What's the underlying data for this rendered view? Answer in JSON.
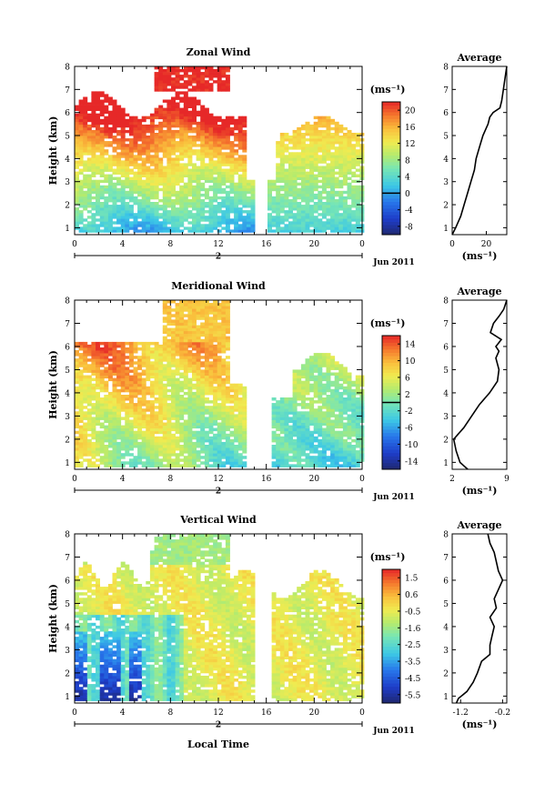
{
  "chart_data": [
    {
      "type": "heatmap",
      "title": "Zonal Wind",
      "ylabel": "Height (km)",
      "xlabel": "",
      "date_label": "Jun 2011",
      "day_label": "2",
      "xlim": [
        0,
        24
      ],
      "ylim": [
        0.7,
        8
      ],
      "xticks": [
        "0",
        "4",
        "8",
        "12",
        "16",
        "20",
        "0"
      ],
      "yticks": [
        "1",
        "2",
        "3",
        "4",
        "5",
        "6",
        "7",
        "8"
      ],
      "colorbar": {
        "unit": "(ms⁻¹)",
        "range": [
          -10,
          22
        ],
        "zero_line": 0,
        "ticks": [
          "20",
          "16",
          "12",
          "8",
          "4",
          "0",
          "-4",
          "-8"
        ]
      },
      "average_profile": {
        "title": "Average",
        "xlabel": "(ms⁻¹)",
        "xlim": [
          0,
          32
        ],
        "xticks": [
          "0",
          "20"
        ],
        "heights": [
          0.7,
          1,
          1.5,
          2,
          2.5,
          3,
          3.5,
          4,
          4.5,
          5,
          5.5,
          5.8,
          6,
          6.2,
          6.5,
          7,
          7.5,
          8
        ],
        "values": [
          0,
          2,
          5,
          7,
          9,
          11,
          13,
          14,
          16,
          18,
          21,
          22,
          24,
          28,
          29,
          30,
          31,
          32
        ]
      }
    },
    {
      "type": "heatmap",
      "title": "Meridional Wind",
      "ylabel": "Height (km)",
      "xlabel": "",
      "date_label": "Jun 2011",
      "day_label": "2",
      "xlim": [
        0,
        24
      ],
      "ylim": [
        0.7,
        8
      ],
      "xticks": [
        "0",
        "4",
        "8",
        "12",
        "16",
        "20",
        "0"
      ],
      "yticks": [
        "1",
        "2",
        "3",
        "4",
        "5",
        "6",
        "7",
        "8"
      ],
      "colorbar": {
        "unit": "(ms⁻¹)",
        "range": [
          -16,
          16
        ],
        "zero_line": 0,
        "ticks": [
          "14",
          "10",
          "6",
          "2",
          "-2",
          "-6",
          "-10",
          "-14"
        ]
      },
      "average_profile": {
        "title": "Average",
        "xlabel": "(ms⁻¹)",
        "xlim": [
          2,
          9
        ],
        "xticks": [
          "2",
          "9"
        ],
        "heights": [
          0.7,
          1,
          1.5,
          2,
          2.5,
          3,
          3.5,
          4,
          4.5,
          5,
          5.5,
          5.8,
          6,
          6.3,
          6.6,
          7,
          7.3,
          7.6,
          8
        ],
        "values": [
          4,
          3,
          2.5,
          2.2,
          3.5,
          4.5,
          5.5,
          6.8,
          7.8,
          8,
          7.6,
          8,
          7.6,
          8.3,
          6.9,
          7.3,
          8,
          8.6,
          9
        ]
      }
    },
    {
      "type": "heatmap",
      "title": "Vertical Wind",
      "ylabel": "Height (km)",
      "xlabel": "Local Time",
      "date_label": "Jun 2011",
      "day_label": "2",
      "xlim": [
        0,
        24
      ],
      "ylim": [
        0.7,
        8
      ],
      "xticks": [
        "0",
        "4",
        "8",
        "12",
        "16",
        "20",
        "0"
      ],
      "yticks": [
        "1",
        "2",
        "3",
        "4",
        "5",
        "6",
        "7",
        "8"
      ],
      "colorbar": {
        "unit": "(ms⁻¹)",
        "range": [
          -6.2,
          2.2
        ],
        "zero_line": null,
        "ticks": [
          "1.5",
          "0.6",
          "-0.5",
          "-1.6",
          "-2.5",
          "-3.5",
          "-4.5",
          "-5.5"
        ]
      },
      "average_profile": {
        "title": "Average",
        "xlabel": "(ms⁻¹)",
        "xlim": [
          -1.4,
          -0.1
        ],
        "xticks": [
          "-1.2",
          "-0.2"
        ],
        "heights": [
          0.7,
          0.9,
          1.2,
          1.6,
          2,
          2.5,
          2.8,
          3.2,
          3.6,
          4,
          4.4,
          4.8,
          5.2,
          5.6,
          6,
          6.4,
          6.8,
          7.2,
          7.6,
          8
        ],
        "values": [
          -1.3,
          -1.25,
          -1.05,
          -0.9,
          -0.8,
          -0.7,
          -0.5,
          -0.5,
          -0.45,
          -0.4,
          -0.5,
          -0.35,
          -0.4,
          -0.3,
          -0.2,
          -0.3,
          -0.35,
          -0.4,
          -0.5,
          -0.55
        ]
      }
    }
  ]
}
